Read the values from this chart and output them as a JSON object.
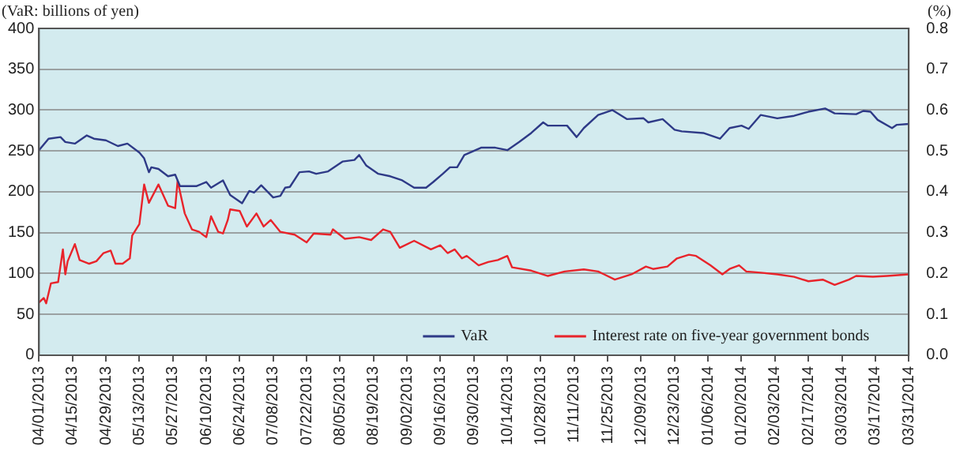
{
  "chart_data": {
    "type": "line",
    "ylabel": "(VaR: billions of yen)",
    "y2label": "(%)",
    "xlim": [
      "2013-04-01",
      "2014-03-31"
    ],
    "xticks": [
      {
        "value": "2013-04-01",
        "label": "04/01/2013"
      },
      {
        "value": "2013-04-15",
        "label": "04/15/2013"
      },
      {
        "value": "2013-04-29",
        "label": "04/29/2013"
      },
      {
        "value": "2013-05-13",
        "label": "05/13/2013"
      },
      {
        "value": "2013-05-27",
        "label": "05/27/2013"
      },
      {
        "value": "2013-06-10",
        "label": "06/10/2013"
      },
      {
        "value": "2013-06-24",
        "label": "06/24/2013"
      },
      {
        "value": "2013-07-08",
        "label": "07/08/2013"
      },
      {
        "value": "2013-07-22",
        "label": "07/22/2013"
      },
      {
        "value": "2013-08-05",
        "label": "08/05/2013"
      },
      {
        "value": "2013-08-19",
        "label": "08/19/2013"
      },
      {
        "value": "2013-09-02",
        "label": "09/02/2013"
      },
      {
        "value": "2013-09-16",
        "label": "09/16/2013"
      },
      {
        "value": "2013-09-30",
        "label": "09/30/2013"
      },
      {
        "value": "2013-10-14",
        "label": "10/14/2013"
      },
      {
        "value": "2013-10-28",
        "label": "10/28/2013"
      },
      {
        "value": "2013-11-11",
        "label": "11/11/2013"
      },
      {
        "value": "2013-11-25",
        "label": "11/25/2013"
      },
      {
        "value": "2013-12-09",
        "label": "12/09/2013"
      },
      {
        "value": "2013-12-23",
        "label": "12/23/2013"
      },
      {
        "value": "2014-01-06",
        "label": "01/06/2014"
      },
      {
        "value": "2014-01-20",
        "label": "01/20/2014"
      },
      {
        "value": "2014-02-03",
        "label": "02/03/2014"
      },
      {
        "value": "2014-02-17",
        "label": "02/17/2014"
      },
      {
        "value": "2014-03-03",
        "label": "03/03/2014"
      },
      {
        "value": "2014-03-17",
        "label": "03/17/2014"
      },
      {
        "value": "2014-03-31",
        "label": "03/31/2014"
      }
    ],
    "ylim": [
      0,
      400
    ],
    "yticks": [
      0,
      50,
      100,
      150,
      200,
      250,
      300,
      350,
      400
    ],
    "y2lim": [
      0,
      0.8
    ],
    "y2ticks": [
      {
        "value": 0,
        "label": "0.0"
      },
      {
        "value": 0.1,
        "label": "0.1"
      },
      {
        "value": 0.2,
        "label": "0.2"
      },
      {
        "value": 0.3,
        "label": "0.3"
      },
      {
        "value": 0.4,
        "label": "0.4"
      },
      {
        "value": 0.5,
        "label": "0.5"
      },
      {
        "value": 0.6,
        "label": "0.6"
      },
      {
        "value": 0.7,
        "label": "0.7"
      },
      {
        "value": 0.8,
        "label": "0.8"
      }
    ],
    "grid": "y",
    "legend": "bottom",
    "marker": "none",
    "line_style": "solid",
    "series": [
      {
        "name": "VaR",
        "color": "#2e3a87",
        "x": [
          "2013-04-01",
          "2013-04-05",
          "2013-04-10",
          "2013-04-12",
          "2013-04-16",
          "2013-04-21",
          "2013-04-24",
          "2013-04-29",
          "2013-05-04",
          "2013-05-08",
          "2013-05-13",
          "2013-05-15",
          "2013-05-17",
          "2013-05-18",
          "2013-05-21",
          "2013-05-25",
          "2013-05-28",
          "2013-05-30",
          "2013-06-06",
          "2013-06-10",
          "2013-06-12",
          "2013-06-17",
          "2013-06-20",
          "2013-06-25",
          "2013-06-28",
          "2013-06-30",
          "2013-07-03",
          "2013-07-08",
          "2013-07-11",
          "2013-07-13",
          "2013-07-15",
          "2013-07-19",
          "2013-07-23",
          "2013-07-26",
          "2013-07-31",
          "2013-08-06",
          "2013-08-11",
          "2013-08-13",
          "2013-08-16",
          "2013-08-21",
          "2013-08-26",
          "2013-08-31",
          "2013-09-05",
          "2013-09-10",
          "2013-09-13",
          "2013-09-17",
          "2013-09-20",
          "2013-09-23",
          "2013-09-26",
          "2013-10-03",
          "2013-10-09",
          "2013-10-14",
          "2013-10-19",
          "2013-10-24",
          "2013-10-29",
          "2013-10-31",
          "2013-11-08",
          "2013-11-12",
          "2013-11-15",
          "2013-11-21",
          "2013-11-27",
          "2013-12-03",
          "2013-12-10",
          "2013-12-12",
          "2013-12-18",
          "2013-12-23",
          "2013-12-26",
          "2014-01-04",
          "2014-01-11",
          "2014-01-15",
          "2014-01-20",
          "2014-01-23",
          "2014-01-28",
          "2014-02-04",
          "2014-02-11",
          "2014-02-17",
          "2014-02-24",
          "2014-02-28",
          "2014-03-09",
          "2014-03-12",
          "2014-03-15",
          "2014-03-18",
          "2014-03-24",
          "2014-03-26",
          "2014-03-31"
        ],
        "values": [
          251,
          265,
          267,
          261,
          259,
          269,
          265,
          263,
          256,
          259,
          248,
          241,
          224,
          230,
          228,
          219,
          221,
          207,
          207,
          212,
          205,
          214,
          196,
          186,
          201,
          199,
          208,
          193,
          195,
          205,
          206,
          224,
          225,
          222,
          225,
          237,
          239,
          245,
          232,
          222,
          219,
          214,
          205,
          205,
          212,
          222,
          230,
          230,
          245,
          254,
          254,
          251,
          261,
          272,
          285,
          281,
          281,
          267,
          278,
          294,
          300,
          289,
          290,
          285,
          289,
          276,
          274,
          272,
          265,
          278,
          281,
          277,
          294,
          290,
          293,
          298,
          302,
          296,
          295,
          299,
          298,
          288,
          278,
          282,
          283
        ]
      },
      {
        "name": "Interest rate on five-year government bonds",
        "color": "#e8242b",
        "axis": "y2",
        "x": [
          "2013-04-01",
          "2013-04-03",
          "2013-04-04",
          "2013-04-06",
          "2013-04-09",
          "2013-04-11",
          "2013-04-12",
          "2013-04-13",
          "2013-04-16",
          "2013-04-18",
          "2013-04-22",
          "2013-04-25",
          "2013-04-28",
          "2013-05-01",
          "2013-05-03",
          "2013-05-06",
          "2013-05-09",
          "2013-05-10",
          "2013-05-13",
          "2013-05-15",
          "2013-05-17",
          "2013-05-21",
          "2013-05-25",
          "2013-05-28",
          "2013-05-29",
          "2013-06-01",
          "2013-06-04",
          "2013-06-07",
          "2013-06-10",
          "2013-06-12",
          "2013-06-15",
          "2013-06-17",
          "2013-06-19",
          "2013-06-20",
          "2013-06-24",
          "2013-06-27",
          "2013-07-01",
          "2013-07-04",
          "2013-07-07",
          "2013-07-11",
          "2013-07-17",
          "2013-07-22",
          "2013-07-25",
          "2013-08-01",
          "2013-08-02",
          "2013-08-07",
          "2013-08-13",
          "2013-08-18",
          "2013-08-23",
          "2013-08-26",
          "2013-08-30",
          "2013-09-05",
          "2013-09-12",
          "2013-09-16",
          "2013-09-19",
          "2013-09-22",
          "2013-09-25",
          "2013-09-27",
          "2013-10-02",
          "2013-10-06",
          "2013-10-10",
          "2013-10-14",
          "2013-10-16",
          "2013-10-24",
          "2013-10-31",
          "2013-11-07",
          "2013-11-15",
          "2013-11-21",
          "2013-11-28",
          "2013-12-05",
          "2013-12-11",
          "2013-12-14",
          "2013-12-20",
          "2013-12-24",
          "2013-12-29",
          "2014-01-01",
          "2014-01-07",
          "2014-01-12",
          "2014-01-15",
          "2014-01-19",
          "2014-01-22",
          "2014-01-28",
          "2014-02-04",
          "2014-02-11",
          "2014-02-17",
          "2014-02-23",
          "2014-02-28",
          "2014-03-06",
          "2014-03-09",
          "2014-03-16",
          "2014-03-22",
          "2014-03-31"
        ],
        "values": [
          0.129,
          0.14,
          0.127,
          0.176,
          0.179,
          0.259,
          0.198,
          0.23,
          0.272,
          0.233,
          0.224,
          0.23,
          0.25,
          0.256,
          0.224,
          0.224,
          0.237,
          0.293,
          0.321,
          0.418,
          0.373,
          0.418,
          0.366,
          0.36,
          0.427,
          0.347,
          0.308,
          0.302,
          0.289,
          0.34,
          0.302,
          0.298,
          0.331,
          0.357,
          0.353,
          0.315,
          0.347,
          0.315,
          0.331,
          0.302,
          0.295,
          0.276,
          0.298,
          0.295,
          0.308,
          0.285,
          0.289,
          0.282,
          0.308,
          0.302,
          0.263,
          0.28,
          0.259,
          0.269,
          0.25,
          0.259,
          0.237,
          0.243,
          0.22,
          0.228,
          0.233,
          0.243,
          0.215,
          0.207,
          0.194,
          0.205,
          0.21,
          0.205,
          0.185,
          0.198,
          0.217,
          0.211,
          0.217,
          0.237,
          0.246,
          0.243,
          0.22,
          0.198,
          0.211,
          0.22,
          0.205,
          0.202,
          0.198,
          0.192,
          0.181,
          0.185,
          0.172,
          0.185,
          0.194,
          0.192,
          0.194,
          0.198
        ]
      }
    ]
  }
}
